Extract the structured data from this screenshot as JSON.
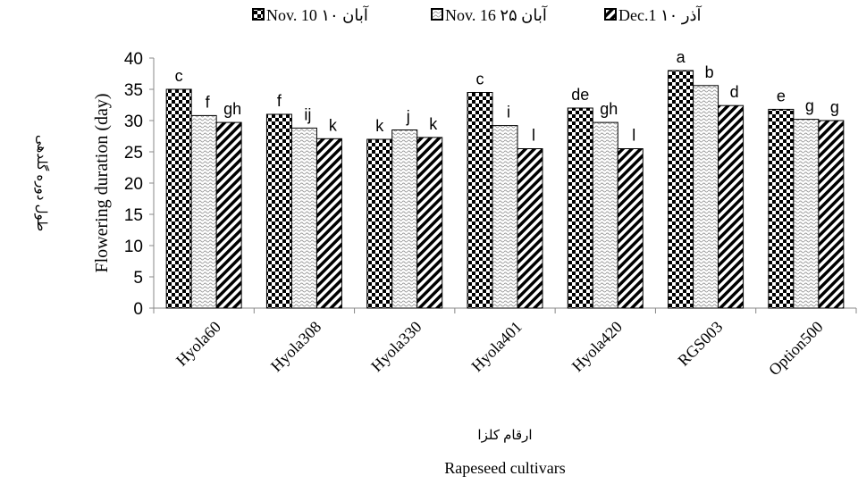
{
  "chart_data": {
    "type": "bar",
    "y_label": "Flowering duration (day)",
    "y_label_fa": "طول دوره گلدهی",
    "x_label": "Rapeseed cultivars",
    "x_label_fa": "ارقام کلزا",
    "categories": [
      "Hyola60",
      "Hyola308",
      "Hyola330",
      "Hyola401",
      "Hyola420",
      "RGS003",
      "Option500"
    ],
    "series": [
      {
        "name": "Nov. 10 ۱۰ آبان",
        "color": "#000000",
        "pattern": "checker",
        "values": [
          35,
          31,
          27,
          34.5,
          32,
          38,
          31.8
        ],
        "labels": [
          "c",
          "f",
          "k",
          "c",
          "de",
          "a",
          "e"
        ]
      },
      {
        "name": "Nov. 16 ۲۵ آبان",
        "color": "#9a9a9a",
        "pattern": "dots",
        "values": [
          30.8,
          28.8,
          28.5,
          29.2,
          29.7,
          35.6,
          30.2
        ],
        "labels": [
          "f",
          "ij",
          "j",
          "i",
          "gh",
          "b",
          "g"
        ]
      },
      {
        "name": "Dec.1 ۱۰ آذر",
        "color": "#000000",
        "pattern": "stripes",
        "values": [
          29.7,
          27.1,
          27.3,
          25.5,
          25.5,
          32.4,
          30
        ],
        "labels": [
          "gh",
          "k",
          "k",
          "l",
          "l",
          "d",
          "g"
        ]
      }
    ],
    "ylim": [
      0,
      40
    ],
    "yticks": [
      0,
      5,
      10,
      15,
      20,
      25,
      30,
      35,
      40
    ],
    "grid": false,
    "legend": "top"
  }
}
